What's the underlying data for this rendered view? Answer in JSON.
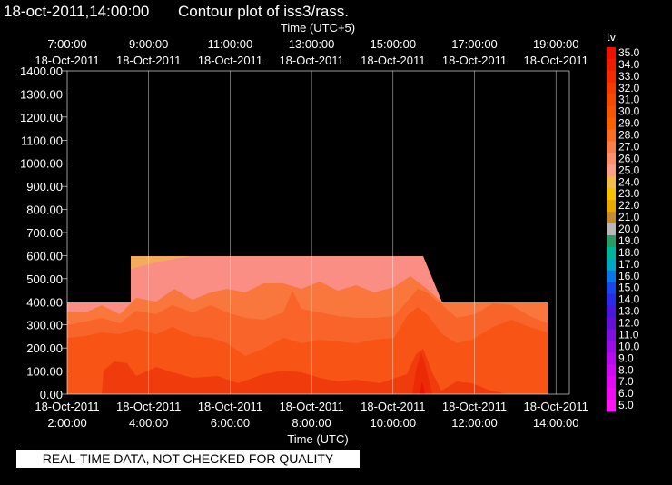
{
  "chart_data": {
    "type": "heatmap",
    "timestamp": "18-oct-2011,14:00:00",
    "title": "Contour plot of iss3/rass.",
    "x_top_label": "Time (UTC+5)",
    "x_bottom_label": "Time (UTC)",
    "x_top_ticks": [
      {
        "time": "7:00:00",
        "date": "18-Oct-2011"
      },
      {
        "time": "9:00:00",
        "date": "18-Oct-2011"
      },
      {
        "time": "11:00:00",
        "date": "18-Oct-2011"
      },
      {
        "time": "13:00:00",
        "date": "18-Oct-2011"
      },
      {
        "time": "15:00:00",
        "date": "18-Oct-2011"
      },
      {
        "time": "17:00:00",
        "date": "18-Oct-2011"
      },
      {
        "time": "19:00:00",
        "date": "18-Oct-2011"
      }
    ],
    "x_bottom_ticks": [
      {
        "time": "2:00:00",
        "date": "18-Oct-2011"
      },
      {
        "time": "4:00:00",
        "date": "18-Oct-2011"
      },
      {
        "time": "6:00:00",
        "date": "18-Oct-2011"
      },
      {
        "time": "8:00:00",
        "date": "18-Oct-2011"
      },
      {
        "time": "10:00:00",
        "date": "18-Oct-2011"
      },
      {
        "time": "12:00:00",
        "date": "18-Oct-2011"
      },
      {
        "time": "14:00:00",
        "date": "18-Oct-2011"
      }
    ],
    "x_range_utc_hours": [
      2,
      14
    ],
    "y_ticks": [
      "0.00",
      "100.00",
      "200.00",
      "300.00",
      "400.00",
      "500.00",
      "600.00",
      "700.00",
      "800.00",
      "900.00",
      "1000.00",
      "1100.00",
      "1200.00",
      "1300.00",
      "1400.00"
    ],
    "y_range": [
      0,
      1400
    ],
    "grid": true,
    "legend_title": "tv",
    "legend_levels": [
      "35.0",
      "34.0",
      "33.0",
      "32.0",
      "31.0",
      "30.0",
      "29.0",
      "28.0",
      "27.0",
      "26.0",
      "25.0",
      "24.0",
      "23.0",
      "22.0",
      "21.0",
      "20.0",
      "19.0",
      "18.0",
      "17.0",
      "16.0",
      "15.0",
      "14.0",
      "13.0",
      "12.0",
      "11.0",
      "10.0",
      "9.0",
      "8.0",
      "7.0",
      "6.0",
      "5.0"
    ],
    "legend_colors": [
      "#ee1100",
      "#f01e00",
      "#f22c00",
      "#f43c00",
      "#f54a00",
      "#f75600",
      "#f86000",
      "#f96d25",
      "#fa7e48",
      "#fc8f6c",
      "#fd9f8a",
      "#f2bd4a",
      "#f5c200",
      "#e9a800",
      "#c48a2e",
      "#b8b8b8",
      "#2a9a66",
      "#00b69a",
      "#00a8c8",
      "#0a78e4",
      "#1848ec",
      "#2a2ae8",
      "#4a18dc",
      "#6410d8",
      "#8010e0",
      "#9c0ce8",
      "#b80aec",
      "#d00af2",
      "#e40af4",
      "#f20cf4",
      "#ff16f8"
    ],
    "series": [
      {
        "range": [
          26,
          28
        ],
        "color": "#fb8e84"
      },
      {
        "range": [
          28,
          29
        ],
        "color": "#f9763c"
      },
      {
        "range": [
          29,
          30
        ],
        "color": "#f8642a"
      },
      {
        "range": [
          30,
          31
        ],
        "color": "#f75416"
      },
      {
        "range": [
          31,
          32
        ],
        "color": "#f03c0c"
      },
      {
        "range": [
          33,
          35
        ],
        "color": "#e81404"
      }
    ],
    "notice": "REAL-TIME DATA, NOT CHECKED FOR QUALITY"
  }
}
